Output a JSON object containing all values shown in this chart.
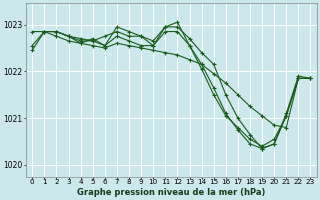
{
  "title": "Graphe pression niveau de la mer (hPa)",
  "background_color": "#cde8ec",
  "grid_color": "#ffffff",
  "line_color": "#1a5c1a",
  "ylim": [
    1019.75,
    1023.45
  ],
  "y_ticks": [
    1020,
    1021,
    1022,
    1023
  ],
  "x_ticks": [
    0,
    1,
    2,
    3,
    4,
    5,
    6,
    7,
    8,
    9,
    10,
    11,
    12,
    13,
    14,
    15,
    16,
    17,
    18,
    19,
    20,
    21,
    22,
    23
  ],
  "series": [
    {
      "x": [
        0,
        1,
        2,
        3,
        4,
        5,
        6,
        7,
        8,
        9,
        10,
        11,
        12,
        13,
        14,
        15,
        16,
        17,
        18,
        19,
        20,
        21,
        22,
        23
      ],
      "y": [
        1022.55,
        1022.85,
        1022.85,
        1022.75,
        1022.7,
        1022.65,
        1022.55,
        1022.75,
        1022.65,
        1022.55,
        1022.55,
        1022.95,
        1022.95,
        1022.7,
        1022.4,
        1022.15,
        1021.5,
        1021.0,
        1020.65,
        1020.35,
        1020.45,
        1021.05,
        1021.85,
        1021.85
      ]
    },
    {
      "x": [
        0,
        1,
        2,
        3,
        4,
        5,
        6,
        7,
        8,
        9,
        10,
        11,
        12,
        13,
        14,
        15,
        16,
        17,
        18,
        19,
        20,
        21,
        22,
        23
      ],
      "y": [
        1022.45,
        1022.85,
        1022.85,
        1022.75,
        1022.65,
        1022.65,
        1022.75,
        1022.85,
        1022.75,
        1022.75,
        1022.55,
        1022.85,
        1022.85,
        1022.55,
        1022.15,
        1021.65,
        1021.1,
        1020.75,
        1020.45,
        1020.35,
        1020.45,
        1021.1,
        1021.9,
        1021.85
      ]
    },
    {
      "x": [
        0,
        1,
        2,
        3,
        4,
        5,
        6,
        7,
        8,
        9,
        10,
        11,
        12,
        13,
        14,
        15,
        16,
        17,
        18,
        19,
        20,
        21,
        22,
        23
      ],
      "y": [
        1022.85,
        1022.85,
        1022.75,
        1022.65,
        1022.6,
        1022.55,
        1022.5,
        1022.6,
        1022.55,
        1022.5,
        1022.45,
        1022.4,
        1022.35,
        1022.25,
        1022.15,
        1021.95,
        1021.75,
        1021.5,
        1021.25,
        1021.05,
        1020.85,
        1020.8,
        1021.85,
        1021.85
      ]
    },
    {
      "x": [
        1,
        2,
        3,
        4,
        5,
        6,
        7,
        8,
        9,
        10,
        11,
        12,
        13,
        14,
        15,
        16,
        17,
        18,
        19,
        20,
        21,
        22,
        23
      ],
      "y": [
        1022.85,
        1022.85,
        1022.75,
        1022.6,
        1022.7,
        1022.55,
        1022.95,
        1022.85,
        1022.75,
        1022.65,
        1022.95,
        1023.05,
        1022.55,
        1022.05,
        1021.5,
        1021.05,
        1020.8,
        1020.55,
        1020.4,
        1020.55,
        1021.05,
        1021.85,
        1021.85
      ]
    }
  ]
}
